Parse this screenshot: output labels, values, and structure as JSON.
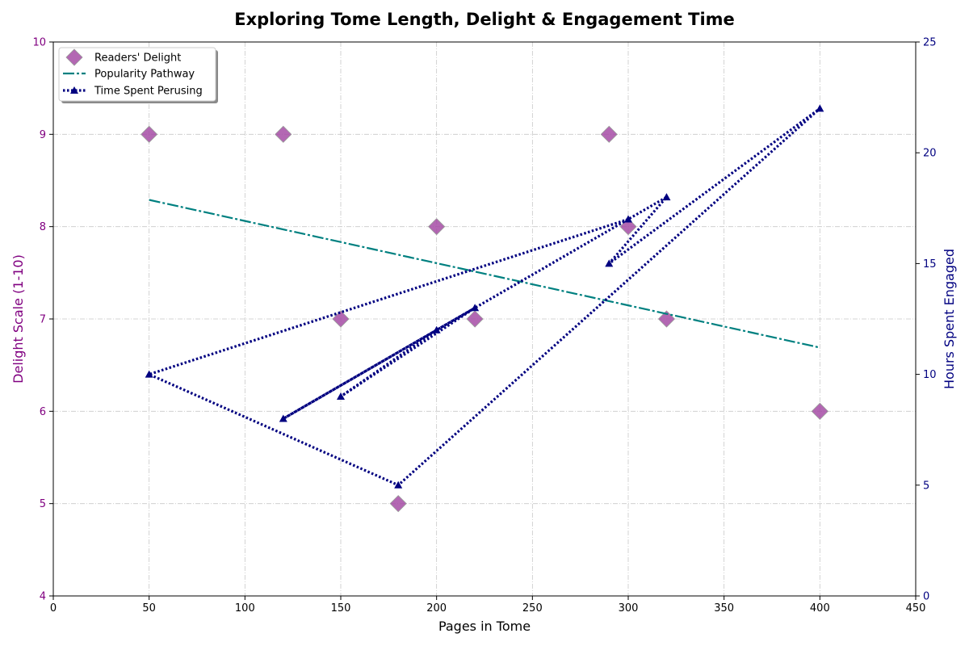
{
  "chart_data": {
    "type": "scatter",
    "title": "Exploring Tome Length, Delight & Engagement Time",
    "xlabel": "Pages in Tome",
    "ylabel_left": "Delight Scale (1-10)",
    "ylabel_right": "Hours Spent Engaged",
    "xlim": [
      0,
      450
    ],
    "ylim_left": [
      4,
      10
    ],
    "ylim_right": [
      0,
      25
    ],
    "xticks": [
      0,
      50,
      100,
      150,
      200,
      250,
      300,
      350,
      400,
      450
    ],
    "yticks_left": [
      4,
      5,
      6,
      7,
      8,
      9,
      10
    ],
    "yticks_right": [
      0,
      5,
      10,
      15,
      20,
      25
    ],
    "grid": true,
    "legend_position": "top-left",
    "colors": {
      "delight": "#a64ca6",
      "trend": "#008080",
      "time": "#000080",
      "left_axis": "#800080",
      "right_axis": "#000080"
    },
    "series": [
      {
        "name": "Readers' Delight",
        "kind": "scatter",
        "axis": "left",
        "marker": "diamond",
        "x": [
          50,
          120,
          150,
          180,
          200,
          220,
          290,
          300,
          320,
          400
        ],
        "y": [
          9,
          9,
          7,
          5,
          8,
          7,
          9,
          8,
          7,
          6
        ]
      },
      {
        "name": "Popularity Pathway",
        "kind": "line",
        "axis": "left",
        "style": "dashdot",
        "x": [
          50,
          400
        ],
        "y": [
          8.29,
          6.69
        ]
      },
      {
        "name": "Time Spent Perusing",
        "kind": "line",
        "axis": "right",
        "style": "dotted",
        "marker": "triangle",
        "x": [
          300,
          50,
          180,
          400,
          290,
          320,
          120,
          220,
          150,
          200
        ],
        "y": [
          17,
          10,
          5,
          22,
          15,
          18,
          8,
          13,
          9,
          12
        ]
      }
    ]
  }
}
